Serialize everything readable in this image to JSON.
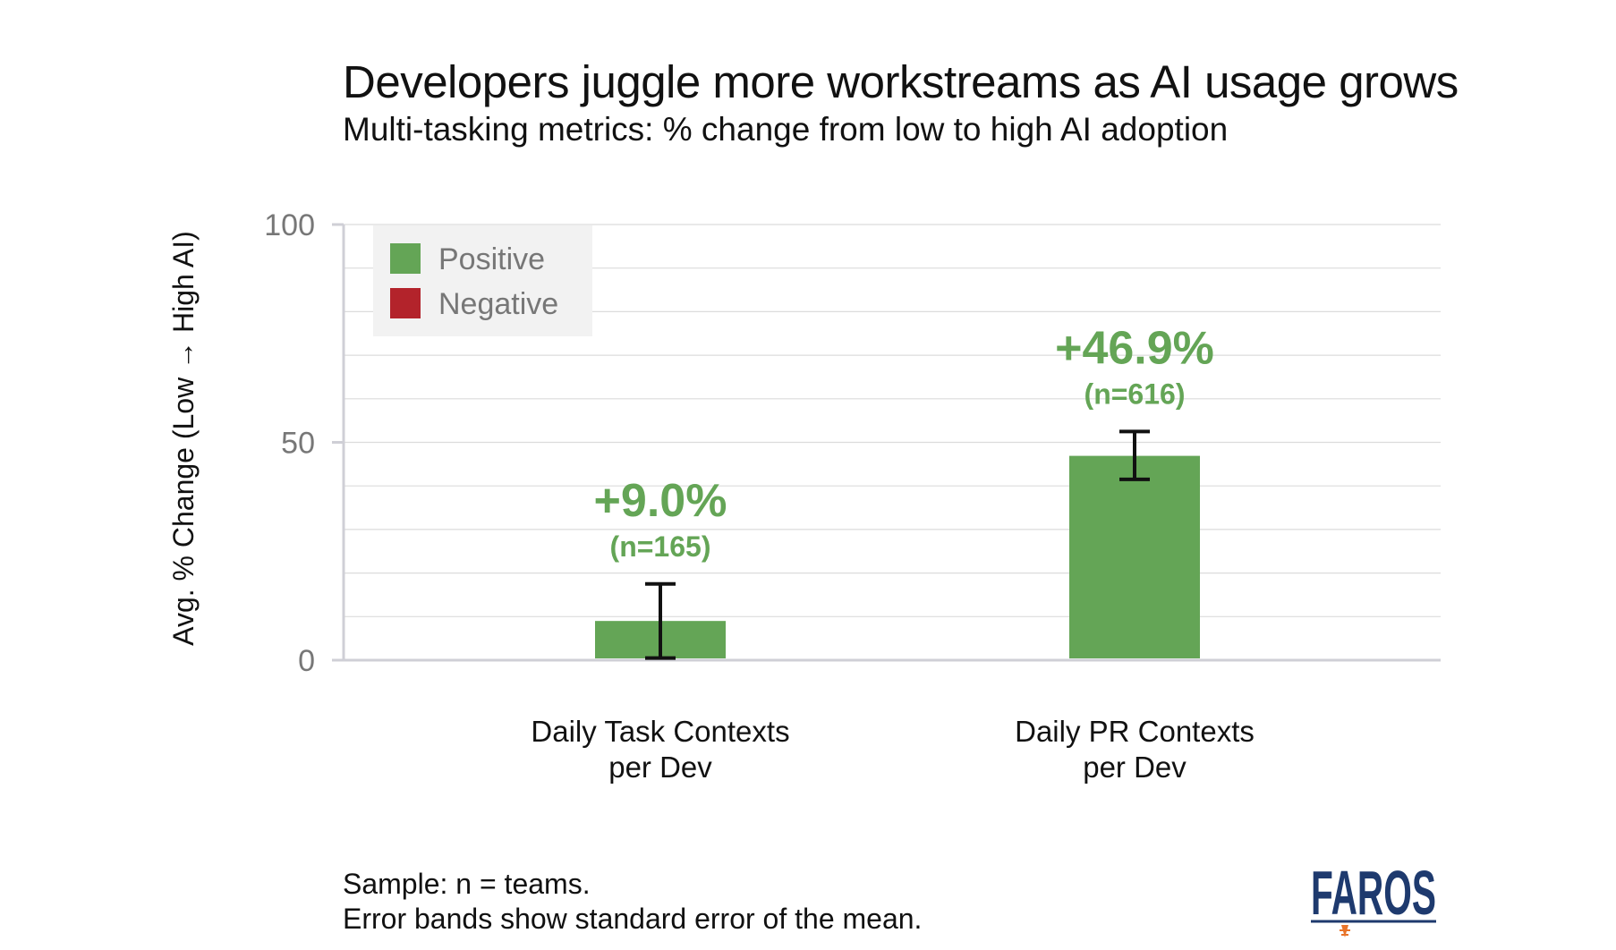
{
  "chart_data": {
    "type": "bar",
    "title": "Developers juggle more workstreams as AI usage grows",
    "subtitle": "Multi-tasking metrics: % change from low to high AI adoption",
    "ylabel": "Avg. % Change (Low → High AI)",
    "xlabel": "",
    "ylim": [
      0,
      100
    ],
    "yticks": [
      0,
      50,
      100
    ],
    "grid": true,
    "legend": {
      "position": "top-left",
      "entries": [
        {
          "label": "Positive",
          "color": "#64a556"
        },
        {
          "label": "Negative",
          "color": "#b3232b"
        }
      ]
    },
    "categories": [
      [
        "Daily Task Contexts",
        "per Dev"
      ],
      [
        "Daily PR Contexts",
        "per Dev"
      ]
    ],
    "values": [
      9.0,
      46.9
    ],
    "error_low": [
      0.5,
      41.5
    ],
    "error_high": [
      17.5,
      52.5
    ],
    "value_labels": [
      "+9.0%",
      "+46.9%"
    ],
    "n_labels": [
      "(n=165)",
      "(n=616)"
    ],
    "sign": [
      "Positive",
      "Positive"
    ]
  },
  "footnotes": [
    "Sample: n = teams.",
    "Error bands show standard error of the mean."
  ],
  "logo": {
    "text": "FAROS",
    "brand_color": "#1e3a6e",
    "accent_color": "#e8742a"
  },
  "colors": {
    "positive": "#64a556",
    "negative": "#b3232b",
    "label": "#64a556"
  }
}
